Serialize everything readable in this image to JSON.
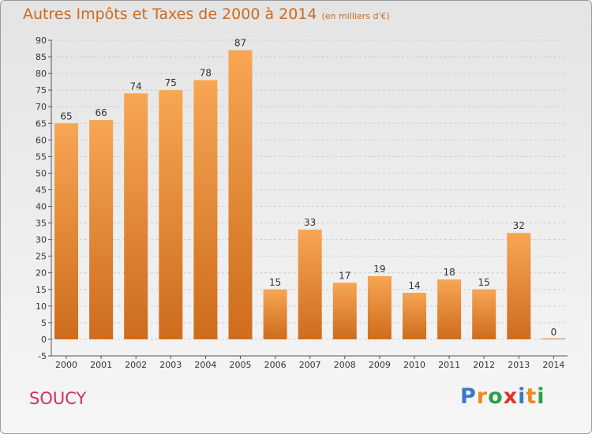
{
  "header": {
    "title": "Autres Impôts et Taxes de 2000 à 2014",
    "subtitle": "(en milliers d'€)"
  },
  "footer": {
    "place": "SOUCY",
    "brand": "Proxiti",
    "brand_letters": [
      {
        "ch": "P",
        "color": "#3a78c8"
      },
      {
        "ch": "r",
        "color": "#f08a1c"
      },
      {
        "ch": "o",
        "color": "#2e9e4a"
      },
      {
        "ch": "x",
        "color": "#e0332b"
      },
      {
        "ch": "i",
        "color": "#3a78c8"
      },
      {
        "ch": "t",
        "color": "#f08a1c"
      },
      {
        "ch": "i",
        "color": "#2e9e4a"
      }
    ]
  },
  "colors": {
    "bar_top": "#f7a654",
    "bar_bottom": "#cd6c1c",
    "grid": "#cccccc",
    "title": "#cc6a22",
    "place": "#cc3366"
  },
  "chart_data": {
    "type": "bar",
    "categories": [
      "2000",
      "2001",
      "2002",
      "2003",
      "2004",
      "2005",
      "2006",
      "2007",
      "2008",
      "2009",
      "2010",
      "2011",
      "2012",
      "2013",
      "2014"
    ],
    "values": [
      65,
      66,
      74,
      75,
      78,
      87,
      15,
      33,
      17,
      19,
      14,
      18,
      15,
      32,
      0
    ],
    "ylim": [
      -5,
      90
    ],
    "yticks": [
      -5,
      0,
      5,
      10,
      15,
      20,
      25,
      30,
      35,
      40,
      45,
      50,
      55,
      60,
      65,
      70,
      75,
      80,
      85,
      90
    ],
    "grid": "horizontal dashed",
    "legend": "none"
  }
}
